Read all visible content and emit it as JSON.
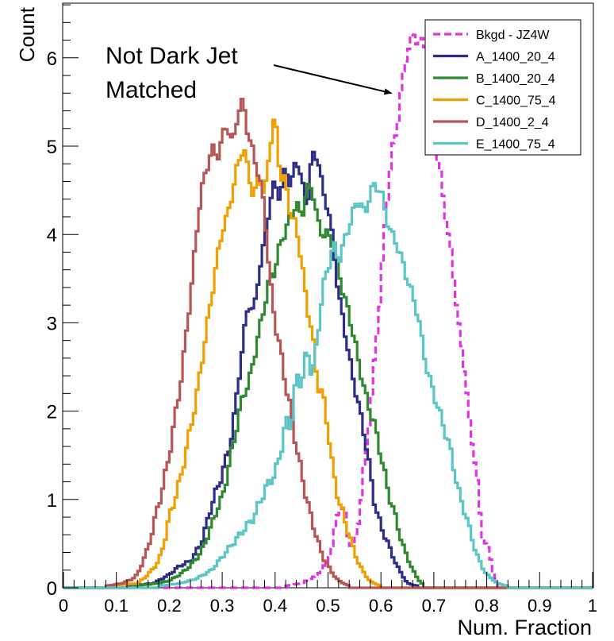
{
  "chart_data": {
    "type": "line",
    "title": "",
    "xlabel": "Num. Fraction",
    "ylabel": "Count",
    "xlim": [
      0,
      1
    ],
    "ylim": [
      0,
      6.6
    ],
    "x_ticks": [
      "0",
      "0.1",
      "0.2",
      "0.3",
      "0.4",
      "0.5",
      "0.6",
      "0.7",
      "0.8",
      "0.9",
      "1"
    ],
    "y_ticks": [
      "0",
      "1",
      "2",
      "3",
      "4",
      "5",
      "6"
    ],
    "grid": false,
    "legend_position": "top-right",
    "annotation": {
      "lines": [
        "Not Dark Jet",
        "Matched"
      ],
      "target_x": 0.62,
      "target_y": 5.6
    },
    "series": [
      {
        "name": "Bkgd - JZ4W",
        "color": "#e233e2",
        "dashed": true,
        "points": [
          [
            0.42,
            0.02
          ],
          [
            0.45,
            0.05
          ],
          [
            0.48,
            0.15
          ],
          [
            0.5,
            0.3
          ],
          [
            0.51,
            0.55
          ],
          [
            0.52,
            0.9
          ],
          [
            0.53,
            0.9
          ],
          [
            0.54,
            0.5
          ],
          [
            0.55,
            0.5
          ],
          [
            0.56,
            0.85
          ],
          [
            0.57,
            1.5
          ],
          [
            0.58,
            2.0
          ],
          [
            0.59,
            2.7
          ],
          [
            0.6,
            3.4
          ],
          [
            0.61,
            4.3
          ],
          [
            0.62,
            4.9
          ],
          [
            0.63,
            5.2
          ],
          [
            0.64,
            5.7
          ],
          [
            0.65,
            6.1
          ],
          [
            0.66,
            6.25
          ],
          [
            0.67,
            6.2
          ],
          [
            0.68,
            6.15
          ],
          [
            0.69,
            6.1
          ],
          [
            0.7,
            5.0
          ],
          [
            0.71,
            4.8
          ],
          [
            0.72,
            4.3
          ],
          [
            0.73,
            3.9
          ],
          [
            0.74,
            3.4
          ],
          [
            0.75,
            2.8
          ],
          [
            0.76,
            2.4
          ],
          [
            0.77,
            1.7
          ],
          [
            0.78,
            1.4
          ],
          [
            0.79,
            0.6
          ],
          [
            0.8,
            0.5
          ],
          [
            0.81,
            0.25
          ],
          [
            0.82,
            0.05
          ]
        ]
      },
      {
        "name": "A_1400_20_4",
        "color": "#2e2e8a",
        "dashed": false,
        "points": [
          [
            0.12,
            0.02
          ],
          [
            0.17,
            0.05
          ],
          [
            0.2,
            0.15
          ],
          [
            0.22,
            0.25
          ],
          [
            0.24,
            0.3
          ],
          [
            0.26,
            0.5
          ],
          [
            0.27,
            0.7
          ],
          [
            0.28,
            0.95
          ],
          [
            0.29,
            1.1
          ],
          [
            0.3,
            1.3
          ],
          [
            0.31,
            1.5
          ],
          [
            0.32,
            1.8
          ],
          [
            0.33,
            2.3
          ],
          [
            0.34,
            2.8
          ],
          [
            0.35,
            3.25
          ],
          [
            0.36,
            3.1
          ],
          [
            0.37,
            3.6
          ],
          [
            0.38,
            3.9
          ],
          [
            0.39,
            4.35
          ],
          [
            0.4,
            4.6
          ],
          [
            0.41,
            4.4
          ],
          [
            0.42,
            4.8
          ],
          [
            0.43,
            4.5
          ],
          [
            0.44,
            4.9
          ],
          [
            0.45,
            4.6
          ],
          [
            0.46,
            4.3
          ],
          [
            0.47,
            4.9
          ],
          [
            0.48,
            4.9
          ],
          [
            0.49,
            4.5
          ],
          [
            0.5,
            4.3
          ],
          [
            0.51,
            3.9
          ],
          [
            0.52,
            3.3
          ],
          [
            0.53,
            3.0
          ],
          [
            0.54,
            2.6
          ],
          [
            0.55,
            2.3
          ],
          [
            0.56,
            2.0
          ],
          [
            0.57,
            1.7
          ],
          [
            0.58,
            1.3
          ],
          [
            0.59,
            0.9
          ],
          [
            0.6,
            0.7
          ],
          [
            0.61,
            0.55
          ],
          [
            0.62,
            0.4
          ],
          [
            0.63,
            0.25
          ],
          [
            0.64,
            0.15
          ],
          [
            0.65,
            0.05
          ],
          [
            0.67,
            0.02
          ]
        ]
      },
      {
        "name": "B_1400_20_4",
        "color": "#2f8a2f",
        "dashed": false,
        "points": [
          [
            0.13,
            0.02
          ],
          [
            0.18,
            0.05
          ],
          [
            0.2,
            0.08
          ],
          [
            0.22,
            0.15
          ],
          [
            0.24,
            0.25
          ],
          [
            0.26,
            0.4
          ],
          [
            0.28,
            0.7
          ],
          [
            0.29,
            0.9
          ],
          [
            0.3,
            1.0
          ],
          [
            0.31,
            1.3
          ],
          [
            0.32,
            1.6
          ],
          [
            0.33,
            1.9
          ],
          [
            0.34,
            2.2
          ],
          [
            0.35,
            2.3
          ],
          [
            0.36,
            2.6
          ],
          [
            0.37,
            2.9
          ],
          [
            0.38,
            3.2
          ],
          [
            0.39,
            3.5
          ],
          [
            0.4,
            3.6
          ],
          [
            0.41,
            3.9
          ],
          [
            0.42,
            4.05
          ],
          [
            0.43,
            4.2
          ],
          [
            0.44,
            4.35
          ],
          [
            0.45,
            4.2
          ],
          [
            0.46,
            4.5
          ],
          [
            0.47,
            4.55
          ],
          [
            0.48,
            4.15
          ],
          [
            0.49,
            4.0
          ],
          [
            0.5,
            4.0
          ],
          [
            0.51,
            3.9
          ],
          [
            0.52,
            3.6
          ],
          [
            0.53,
            3.3
          ],
          [
            0.54,
            3.1
          ],
          [
            0.55,
            2.8
          ],
          [
            0.56,
            2.5
          ],
          [
            0.57,
            2.2
          ],
          [
            0.58,
            2.0
          ],
          [
            0.59,
            1.8
          ],
          [
            0.6,
            1.5
          ],
          [
            0.61,
            1.2
          ],
          [
            0.62,
            0.95
          ],
          [
            0.63,
            0.75
          ],
          [
            0.64,
            0.5
          ],
          [
            0.65,
            0.35
          ],
          [
            0.66,
            0.2
          ],
          [
            0.67,
            0.1
          ],
          [
            0.68,
            0.03
          ]
        ]
      },
      {
        "name": "C_1400_75_4",
        "color": "#f0a000",
        "dashed": false,
        "points": [
          [
            0.08,
            0.02
          ],
          [
            0.14,
            0.05
          ],
          [
            0.16,
            0.15
          ],
          [
            0.18,
            0.3
          ],
          [
            0.19,
            0.5
          ],
          [
            0.2,
            0.8
          ],
          [
            0.21,
            1.0
          ],
          [
            0.22,
            1.2
          ],
          [
            0.23,
            1.5
          ],
          [
            0.24,
            1.8
          ],
          [
            0.25,
            2.1
          ],
          [
            0.26,
            2.5
          ],
          [
            0.27,
            2.9
          ],
          [
            0.28,
            3.3
          ],
          [
            0.29,
            3.7
          ],
          [
            0.3,
            4.05
          ],
          [
            0.31,
            4.2
          ],
          [
            0.32,
            4.5
          ],
          [
            0.33,
            4.8
          ],
          [
            0.34,
            5.0
          ],
          [
            0.35,
            4.7
          ],
          [
            0.36,
            4.4
          ],
          [
            0.37,
            4.7
          ],
          [
            0.38,
            4.4
          ],
          [
            0.39,
            5.0
          ],
          [
            0.4,
            5.35
          ],
          [
            0.41,
            4.65
          ],
          [
            0.42,
            4.6
          ],
          [
            0.43,
            4.2
          ],
          [
            0.44,
            4.1
          ],
          [
            0.45,
            3.7
          ],
          [
            0.46,
            3.2
          ],
          [
            0.47,
            2.9
          ],
          [
            0.48,
            2.3
          ],
          [
            0.49,
            2.2
          ],
          [
            0.5,
            1.8
          ],
          [
            0.51,
            1.3
          ],
          [
            0.52,
            1.0
          ],
          [
            0.53,
            0.8
          ],
          [
            0.54,
            0.6
          ],
          [
            0.55,
            0.4
          ],
          [
            0.56,
            0.25
          ],
          [
            0.57,
            0.15
          ],
          [
            0.58,
            0.07
          ],
          [
            0.6,
            0.02
          ]
        ]
      },
      {
        "name": "D_1400_2_4",
        "color": "#b85555",
        "dashed": false,
        "points": [
          [
            0.08,
            0.02
          ],
          [
            0.11,
            0.05
          ],
          [
            0.13,
            0.1
          ],
          [
            0.14,
            0.15
          ],
          [
            0.15,
            0.3
          ],
          [
            0.16,
            0.45
          ],
          [
            0.17,
            0.7
          ],
          [
            0.18,
            0.95
          ],
          [
            0.19,
            1.2
          ],
          [
            0.2,
            1.5
          ],
          [
            0.21,
            1.9
          ],
          [
            0.22,
            2.25
          ],
          [
            0.23,
            2.75
          ],
          [
            0.24,
            3.3
          ],
          [
            0.25,
            3.9
          ],
          [
            0.26,
            4.5
          ],
          [
            0.27,
            4.7
          ],
          [
            0.28,
            5.0
          ],
          [
            0.29,
            4.85
          ],
          [
            0.3,
            5.1
          ],
          [
            0.31,
            5.25
          ],
          [
            0.32,
            5.0
          ],
          [
            0.33,
            5.4
          ],
          [
            0.34,
            5.5
          ],
          [
            0.35,
            5.1
          ],
          [
            0.36,
            4.9
          ],
          [
            0.37,
            4.65
          ],
          [
            0.38,
            4.3
          ],
          [
            0.39,
            3.5
          ],
          [
            0.4,
            3.0
          ],
          [
            0.41,
            2.7
          ],
          [
            0.42,
            2.3
          ],
          [
            0.43,
            2.0
          ],
          [
            0.44,
            1.6
          ],
          [
            0.45,
            1.3
          ],
          [
            0.46,
            1.0
          ],
          [
            0.47,
            0.75
          ],
          [
            0.48,
            0.55
          ],
          [
            0.49,
            0.35
          ],
          [
            0.5,
            0.25
          ],
          [
            0.51,
            0.15
          ],
          [
            0.52,
            0.08
          ],
          [
            0.54,
            0.02
          ]
        ]
      },
      {
        "name": "E_1400_75_4",
        "color": "#5cc6c6",
        "dashed": false,
        "points": [
          [
            0.18,
            0.02
          ],
          [
            0.22,
            0.05
          ],
          [
            0.25,
            0.1
          ],
          [
            0.28,
            0.2
          ],
          [
            0.3,
            0.35
          ],
          [
            0.32,
            0.5
          ],
          [
            0.34,
            0.65
          ],
          [
            0.36,
            0.8
          ],
          [
            0.38,
            1.1
          ],
          [
            0.4,
            1.3
          ],
          [
            0.41,
            1.5
          ],
          [
            0.42,
            1.9
          ],
          [
            0.43,
            1.8
          ],
          [
            0.44,
            2.4
          ],
          [
            0.45,
            2.3
          ],
          [
            0.46,
            2.7
          ],
          [
            0.47,
            2.4
          ],
          [
            0.48,
            2.8
          ],
          [
            0.49,
            3.4
          ],
          [
            0.5,
            3.6
          ],
          [
            0.51,
            3.9
          ],
          [
            0.52,
            3.7
          ],
          [
            0.53,
            3.9
          ],
          [
            0.54,
            4.1
          ],
          [
            0.55,
            4.3
          ],
          [
            0.56,
            4.4
          ],
          [
            0.57,
            4.2
          ],
          [
            0.58,
            4.5
          ],
          [
            0.59,
            4.55
          ],
          [
            0.6,
            4.5
          ],
          [
            0.61,
            4.2
          ],
          [
            0.62,
            4.0
          ],
          [
            0.63,
            3.9
          ],
          [
            0.64,
            3.7
          ],
          [
            0.65,
            3.5
          ],
          [
            0.66,
            3.3
          ],
          [
            0.67,
            3.1
          ],
          [
            0.68,
            2.7
          ],
          [
            0.69,
            2.4
          ],
          [
            0.7,
            2.2
          ],
          [
            0.71,
            2.0
          ],
          [
            0.72,
            1.8
          ],
          [
            0.73,
            1.6
          ],
          [
            0.74,
            1.3
          ],
          [
            0.75,
            1.0
          ],
          [
            0.76,
            0.85
          ],
          [
            0.77,
            0.6
          ],
          [
            0.78,
            0.4
          ],
          [
            0.79,
            0.25
          ],
          [
            0.8,
            0.15
          ],
          [
            0.81,
            0.1
          ],
          [
            0.82,
            0.05
          ],
          [
            0.84,
            0.02
          ]
        ]
      }
    ]
  }
}
